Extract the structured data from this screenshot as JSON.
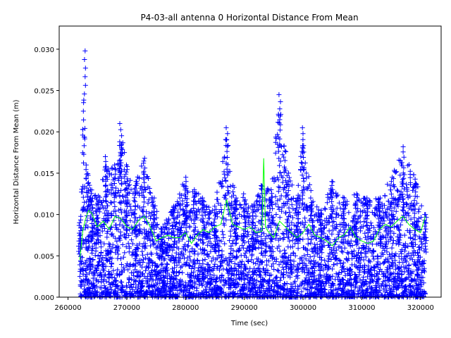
{
  "chart_data": {
    "type": "scatter",
    "title": "P4-03-all antenna 0 Horizontal Distance From Mean",
    "xlabel": "Time (sec)",
    "ylabel": "Horizontal Distance From Mean (m)",
    "xlim": [
      258500,
      323500
    ],
    "ylim": [
      0,
      0.0328
    ],
    "x_ticks": [
      260000,
      270000,
      280000,
      290000,
      300000,
      310000,
      320000
    ],
    "x_tick_labels": [
      "260000",
      "270000",
      "280000",
      "290000",
      "300000",
      "310000",
      "320000"
    ],
    "y_ticks": [
      0,
      0.005,
      0.01,
      0.015,
      0.02,
      0.025,
      0.03
    ],
    "y_tick_labels": [
      "0.000",
      "0.005",
      "0.010",
      "0.015",
      "0.020",
      "0.025",
      "0.030"
    ],
    "grid": false,
    "legend": "none",
    "colors": {
      "markers": "#0000ff",
      "line": "#00ff00",
      "axes": "#000000"
    },
    "series": [
      {
        "style": "markers-plus",
        "color": "#0000ff",
        "envelope_x": [
          262000,
          262800,
          263200,
          264000,
          265000,
          266500,
          268000,
          269000,
          270000,
          271500,
          273000,
          274500,
          276000,
          278000,
          280000,
          281500,
          283000,
          285000,
          287000,
          288500,
          290000,
          291500,
          293000,
          294500,
          296000,
          297500,
          299000,
          300000,
          301500,
          303000,
          305000,
          307000,
          309000,
          311000,
          313000,
          315000,
          317000,
          319000,
          320800
        ],
        "envelope_y": [
          0.009,
          0.0298,
          0.016,
          0.013,
          0.012,
          0.017,
          0.016,
          0.021,
          0.016,
          0.014,
          0.0168,
          0.012,
          0.0085,
          0.011,
          0.0145,
          0.013,
          0.012,
          0.011,
          0.0205,
          0.012,
          0.0125,
          0.011,
          0.0135,
          0.013,
          0.0245,
          0.015,
          0.012,
          0.0205,
          0.012,
          0.0105,
          0.014,
          0.012,
          0.0125,
          0.012,
          0.012,
          0.0145,
          0.0182,
          0.0148,
          0.01
        ],
        "floor": 0.0
      },
      {
        "style": "line",
        "color": "#00ff00",
        "x": [
          262000,
          262500,
          263000,
          263500,
          264000,
          265000,
          266000,
          267000,
          268000,
          269000,
          270000,
          271000,
          272000,
          273000,
          274000,
          275000,
          276000,
          277000,
          278000,
          279000,
          280000,
          281000,
          282000,
          283000,
          284000,
          285000,
          286000,
          287000,
          288000,
          289000,
          290000,
          291000,
          292000,
          293000,
          293300,
          293600,
          294000,
          295000,
          296000,
          297000,
          298000,
          299000,
          300000,
          301000,
          302000,
          303000,
          304000,
          305000,
          306000,
          307000,
          308000,
          309000,
          310000,
          311000,
          312000,
          313000,
          314000,
          315000,
          316000,
          317000,
          318000,
          319000,
          320000,
          320800
        ],
        "y": [
          0.0045,
          0.008,
          0.0095,
          0.0105,
          0.0102,
          0.0085,
          0.0092,
          0.0082,
          0.0098,
          0.0095,
          0.0085,
          0.0082,
          0.0093,
          0.0098,
          0.0085,
          0.0068,
          0.0072,
          0.0075,
          0.0072,
          0.0072,
          0.0078,
          0.0065,
          0.0075,
          0.0082,
          0.0078,
          0.0085,
          0.0088,
          0.0118,
          0.0088,
          0.0085,
          0.0082,
          0.0085,
          0.0078,
          0.008,
          0.0168,
          0.0085,
          0.008,
          0.0072,
          0.0092,
          0.0085,
          0.0078,
          0.0072,
          0.0078,
          0.0088,
          0.0075,
          0.0072,
          0.0068,
          0.0062,
          0.0072,
          0.0075,
          0.0085,
          0.0072,
          0.0068,
          0.0065,
          0.0068,
          0.0082,
          0.0088,
          0.0085,
          0.0092,
          0.0098,
          0.0088,
          0.0082,
          0.0078,
          0.0098
        ]
      }
    ]
  }
}
